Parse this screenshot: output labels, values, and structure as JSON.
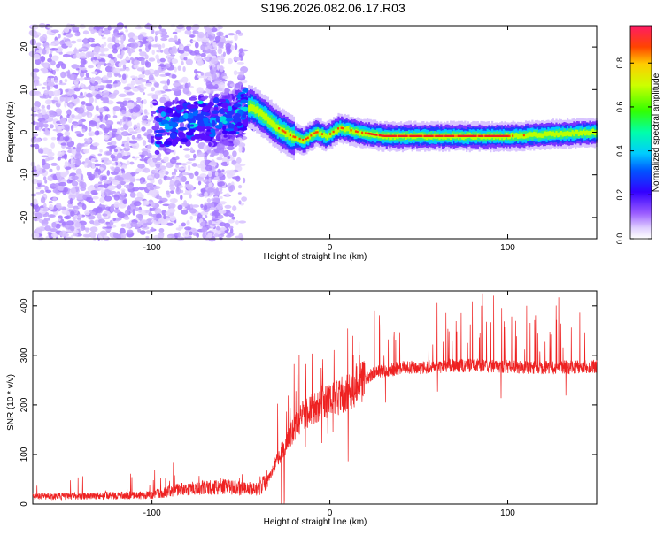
{
  "title": "S196.2026.082.06.17.R03",
  "chart_data": [
    {
      "type": "heatmap",
      "xlabel": "Height of straight line (km)",
      "ylabel": "Frequency (Hz)",
      "xlim": [
        -167,
        150
      ],
      "ylim": [
        -25,
        25
      ],
      "xticks": [
        -100,
        0,
        100
      ],
      "yticks": [
        -20,
        -10,
        0,
        10,
        20
      ],
      "colorbar": {
        "label": "Normalized spectral amplitude",
        "range": [
          0,
          0.97
        ],
        "ticks": [
          0.0,
          0.2,
          0.4,
          0.6,
          0.8
        ]
      },
      "ridge": {
        "description_points": [
          [
            -95,
            1
          ],
          [
            -75,
            3
          ],
          [
            -55,
            3
          ],
          [
            -45,
            6
          ],
          [
            -38,
            4
          ],
          [
            -30,
            1
          ],
          [
            -22,
            -1
          ],
          [
            -15,
            -2
          ],
          [
            -8,
            0
          ],
          [
            -2,
            -1
          ],
          [
            5,
            1
          ],
          [
            15,
            0
          ],
          [
            30,
            -1
          ],
          [
            60,
            -1
          ],
          [
            100,
            -1
          ],
          [
            150,
            0
          ]
        ]
      }
    },
    {
      "type": "line",
      "xlabel": "Height of straight line (km)",
      "ylabel": "SNR (10 * v/v)",
      "xlim": [
        -167,
        150
      ],
      "ylim": [
        0,
        430
      ],
      "xticks": [
        -100,
        0,
        100
      ],
      "yticks": [
        0,
        100,
        200,
        300,
        400
      ],
      "color": "#ee2222",
      "envelope": [
        [
          -167,
          15
        ],
        [
          -100,
          18
        ],
        [
          -85,
          30
        ],
        [
          -60,
          35
        ],
        [
          -40,
          30
        ],
        [
          -35,
          50
        ],
        [
          -28,
          100
        ],
        [
          -22,
          140
        ],
        [
          -15,
          180
        ],
        [
          -5,
          200
        ],
        [
          5,
          215
        ],
        [
          15,
          240
        ],
        [
          25,
          265
        ],
        [
          40,
          275
        ],
        [
          80,
          280
        ],
        [
          120,
          275
        ],
        [
          150,
          278
        ]
      ]
    }
  ]
}
